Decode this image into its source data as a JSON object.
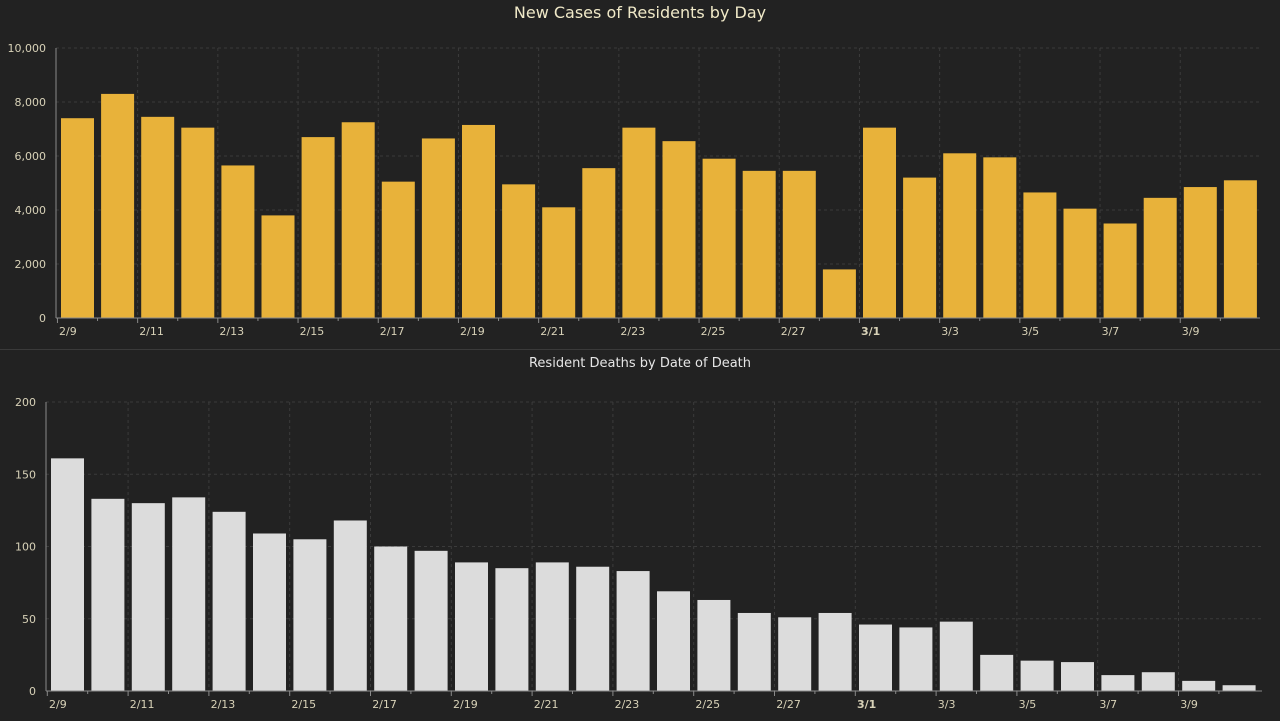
{
  "chart_data": [
    {
      "type": "bar",
      "title": "New Cases of Residents by Day",
      "xlabel": "",
      "ylabel": "",
      "ylim": [
        0,
        10000
      ],
      "yticks": [
        "0",
        "2,000",
        "4,000",
        "6,000",
        "8,000",
        "10,000"
      ],
      "ytick_values": [
        0,
        2000,
        4000,
        6000,
        8000,
        10000
      ],
      "categories": [
        "2/9",
        "2/10",
        "2/11",
        "2/12",
        "2/13",
        "2/14",
        "2/15",
        "2/16",
        "2/17",
        "2/18",
        "2/19",
        "2/20",
        "2/21",
        "2/22",
        "2/23",
        "2/24",
        "2/25",
        "2/26",
        "2/27",
        "2/28",
        "3/1",
        "3/2",
        "3/3",
        "3/4",
        "3/5",
        "3/6",
        "3/7",
        "3/8",
        "3/9",
        "3/10"
      ],
      "xtick_labels": [
        "2/9",
        "2/11",
        "2/13",
        "2/15",
        "2/17",
        "2/19",
        "2/21",
        "2/23",
        "2/25",
        "2/27",
        "3/1",
        "3/3",
        "3/5",
        "3/7",
        "3/9"
      ],
      "bold_tick": "3/1",
      "values": [
        7400,
        8300,
        7450,
        7050,
        5650,
        3800,
        6700,
        7250,
        5050,
        6650,
        7150,
        4950,
        4100,
        5550,
        7050,
        6550,
        5900,
        5450,
        5450,
        1800,
        7050,
        5200,
        6100,
        5950,
        4650,
        4050,
        3500,
        4450,
        4850,
        5100
      ],
      "bar_color": "#e8b23a",
      "grid": true
    },
    {
      "type": "bar",
      "title": "Resident Deaths by Date of Death",
      "xlabel": "",
      "ylabel": "",
      "ylim": [
        0,
        200
      ],
      "yticks": [
        "0",
        "50",
        "100",
        "150",
        "200"
      ],
      "ytick_values": [
        0,
        50,
        100,
        150,
        200
      ],
      "categories": [
        "2/9",
        "2/10",
        "2/11",
        "2/12",
        "2/13",
        "2/14",
        "2/15",
        "2/16",
        "2/17",
        "2/18",
        "2/19",
        "2/20",
        "2/21",
        "2/22",
        "2/23",
        "2/24",
        "2/25",
        "2/26",
        "2/27",
        "2/28",
        "3/1",
        "3/2",
        "3/3",
        "3/4",
        "3/5",
        "3/6",
        "3/7",
        "3/8",
        "3/9",
        "3/10"
      ],
      "xtick_labels": [
        "2/9",
        "2/11",
        "2/13",
        "2/15",
        "2/17",
        "2/19",
        "2/21",
        "2/23",
        "2/25",
        "2/27",
        "3/1",
        "3/3",
        "3/5",
        "3/7",
        "3/9"
      ],
      "bold_tick": "3/1",
      "values": [
        161,
        133,
        130,
        134,
        124,
        109,
        105,
        118,
        100,
        97,
        89,
        85,
        89,
        86,
        83,
        69,
        63,
        54,
        51,
        54,
        46,
        44,
        48,
        25,
        21,
        20,
        11,
        13,
        7,
        4
      ],
      "bar_color": "#dcdcdc",
      "grid": true
    }
  ]
}
